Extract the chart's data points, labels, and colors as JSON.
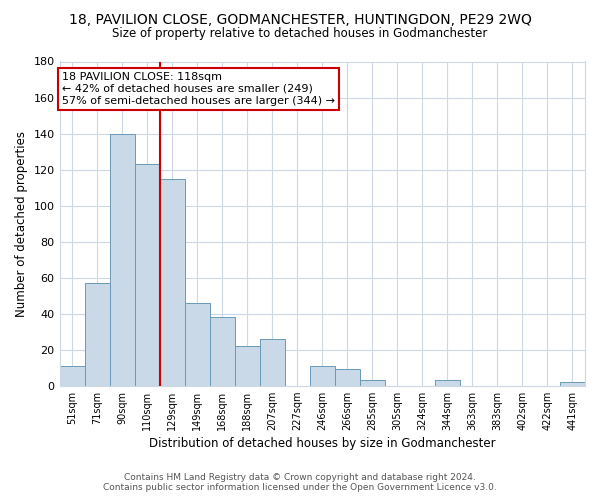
{
  "title": "18, PAVILION CLOSE, GODMANCHESTER, HUNTINGDON, PE29 2WQ",
  "subtitle": "Size of property relative to detached houses in Godmanchester",
  "xlabel": "Distribution of detached houses by size in Godmanchester",
  "ylabel": "Number of detached properties",
  "bar_color": "#c9d9e8",
  "bar_edge_color": "#6a9ab8",
  "categories": [
    "51sqm",
    "71sqm",
    "90sqm",
    "110sqm",
    "129sqm",
    "149sqm",
    "168sqm",
    "188sqm",
    "207sqm",
    "227sqm",
    "246sqm",
    "266sqm",
    "285sqm",
    "305sqm",
    "324sqm",
    "344sqm",
    "363sqm",
    "383sqm",
    "402sqm",
    "422sqm",
    "441sqm"
  ],
  "values": [
    11,
    57,
    140,
    123,
    115,
    46,
    38,
    22,
    26,
    0,
    11,
    9,
    3,
    0,
    0,
    3,
    0,
    0,
    0,
    0,
    2
  ],
  "ylim": [
    0,
    180
  ],
  "yticks": [
    0,
    20,
    40,
    60,
    80,
    100,
    120,
    140,
    160,
    180
  ],
  "vline_x": 3.5,
  "vline_color": "#cc0000",
  "ann_line1": "18 PAVILION CLOSE: 118sqm",
  "ann_line2": "← 42% of detached houses are smaller (249)",
  "ann_line3": "57% of semi-detached houses are larger (344) →",
  "footer_text": "Contains HM Land Registry data © Crown copyright and database right 2024.\nContains public sector information licensed under the Open Government Licence v3.0.",
  "background_color": "#ffffff",
  "grid_color": "#ccd8e4"
}
